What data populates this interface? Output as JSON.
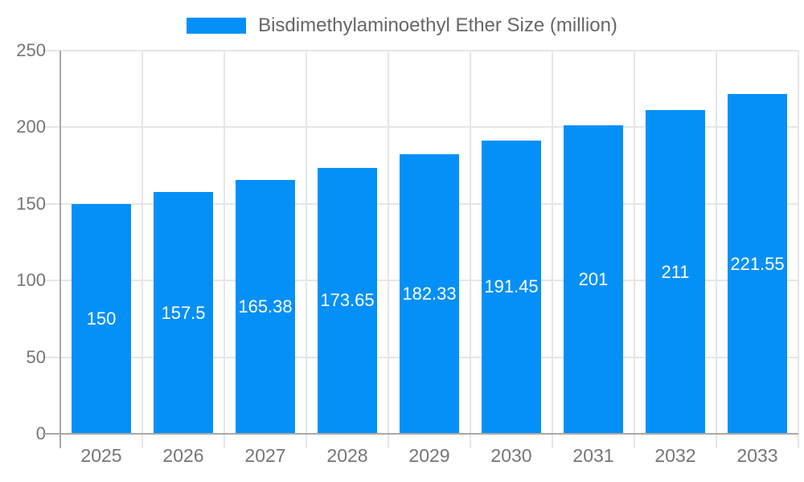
{
  "chart_data": {
    "type": "bar",
    "title": "Bisdimethylaminoethyl Ether Size (million)",
    "legend": {
      "label": "Bisdimethylaminoethyl Ether Size (million)",
      "position": "top",
      "swatch_color": "#0590F8"
    },
    "categories": [
      "2025",
      "2026",
      "2027",
      "2028",
      "2029",
      "2030",
      "2031",
      "2032",
      "2033"
    ],
    "values": [
      150,
      157.5,
      165.38,
      173.65,
      182.33,
      191.45,
      201,
      211,
      221.55
    ],
    "value_labels": [
      "150",
      "157.5",
      "165.38",
      "173.65",
      "182.33",
      "191.45",
      "201",
      "211",
      "221.55"
    ],
    "xlabel": "",
    "ylabel": "",
    "ylim": [
      0,
      250
    ],
    "yticks": [
      0,
      50,
      100,
      150,
      200,
      250
    ],
    "grid": true,
    "colors": {
      "bar": "#0590F8",
      "value_label": "#ffffff",
      "grid": "#e6e6e6",
      "axis": "#a8a8a8",
      "tick_label": "#757575",
      "legend_text": "#666666",
      "background": "#ffffff"
    }
  }
}
